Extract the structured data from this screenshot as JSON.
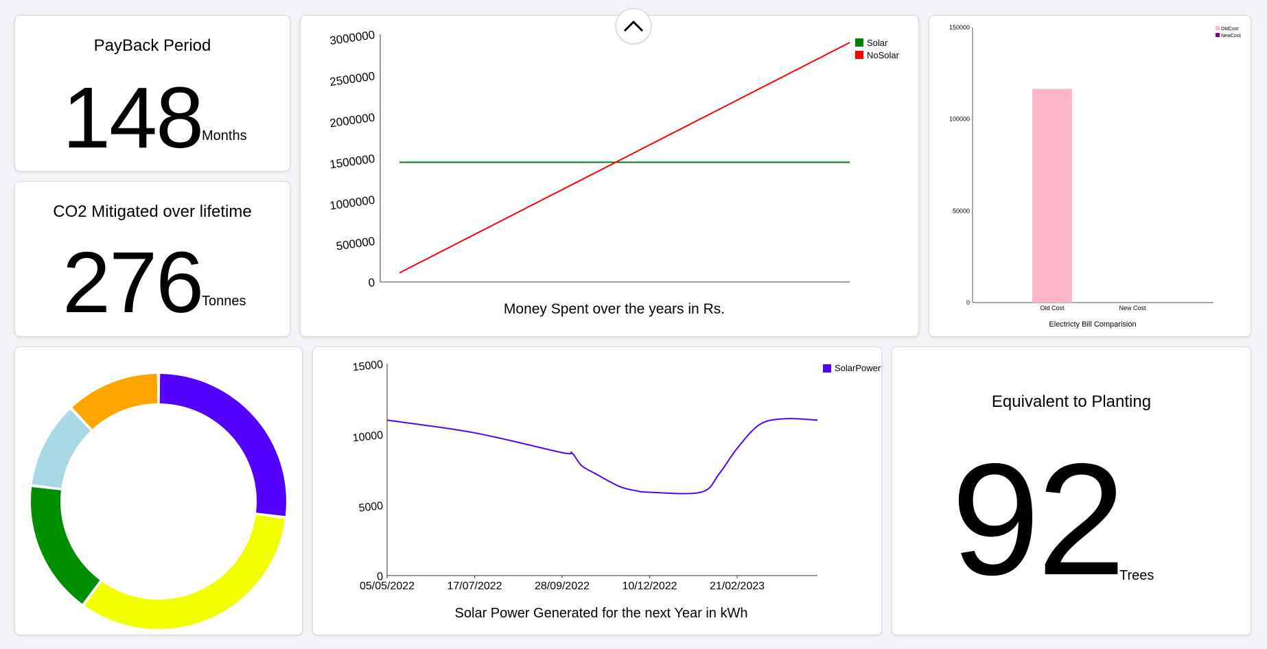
{
  "payback": {
    "title": "PayBack Period",
    "value": "148",
    "unit": "Months"
  },
  "co2": {
    "title": "CO2 Mitigated over lifetime",
    "value": "276",
    "unit": "Tonnes"
  },
  "trees": {
    "title": "Equivalent to Planting",
    "value": "92",
    "unit": "Trees"
  },
  "collapse_icon": "chevron-up-icon",
  "charts": {
    "money": {
      "type": "line",
      "caption": "Money Spent over the years in Rs.",
      "yticks": [
        "0",
        "500000",
        "1000000",
        "1500000",
        "2000000",
        "2500000",
        "3000000"
      ],
      "ylim": [
        0,
        3000000
      ],
      "series": [
        {
          "name": "Solar",
          "color": "#008000",
          "values": [
            1450000,
            1450000
          ]
        },
        {
          "name": "NoSolar",
          "color": "#ff0000",
          "values": [
            110000,
            2900000
          ]
        }
      ],
      "legend": "top-right"
    },
    "bill": {
      "type": "bar",
      "caption": "Electricty Bill Comparision",
      "categories": [
        "Old Cost",
        "New Cost"
      ],
      "yticks": [
        "0",
        "50000",
        "100000",
        "150000"
      ],
      "ylim": [
        0,
        150000
      ],
      "series": [
        {
          "name": "OldCost",
          "color": "#ffb6c8",
          "values": [
            116500,
            0
          ]
        },
        {
          "name": "NewCost",
          "color": "#800080",
          "values": [
            0,
            0
          ]
        }
      ],
      "legend": "top-right"
    },
    "donut": {
      "type": "pie",
      "colors": [
        "#5500ff",
        "#f2ff00",
        "#008f00",
        "#a8d8e6",
        "#ffa500"
      ],
      "values": [
        27,
        33,
        17,
        11,
        12
      ]
    },
    "solar": {
      "type": "line",
      "caption": "Solar Power Generated for the next Year in kWh",
      "xticks": [
        "05/05/2022",
        "17/07/2022",
        "28/09/2022",
        "10/12/2022",
        "21/02/2023"
      ],
      "yticks": [
        "0",
        "5000",
        "10000",
        "15000"
      ],
      "ylim": [
        0,
        15000
      ],
      "series": [
        {
          "name": "SolarPower",
          "color": "#5500ff",
          "x": [
            "05/05/2022",
            "17/07/2022",
            "28/09/2022",
            "06/10/2022",
            "14/10/2022",
            "26/10/2022",
            "15/11/2022",
            "29/11/2022",
            "10/12/2022",
            "22/01/2023",
            "06/02/2023",
            "21/02/2023",
            "12/03/2023",
            "02/04/2023",
            "29/04/2023"
          ],
          "values": [
            11000,
            10100,
            8700,
            8700,
            7800,
            7200,
            6300,
            6000,
            5900,
            5900,
            7200,
            9000,
            10700,
            11100,
            11000
          ]
        }
      ],
      "legend": "top-right"
    }
  }
}
